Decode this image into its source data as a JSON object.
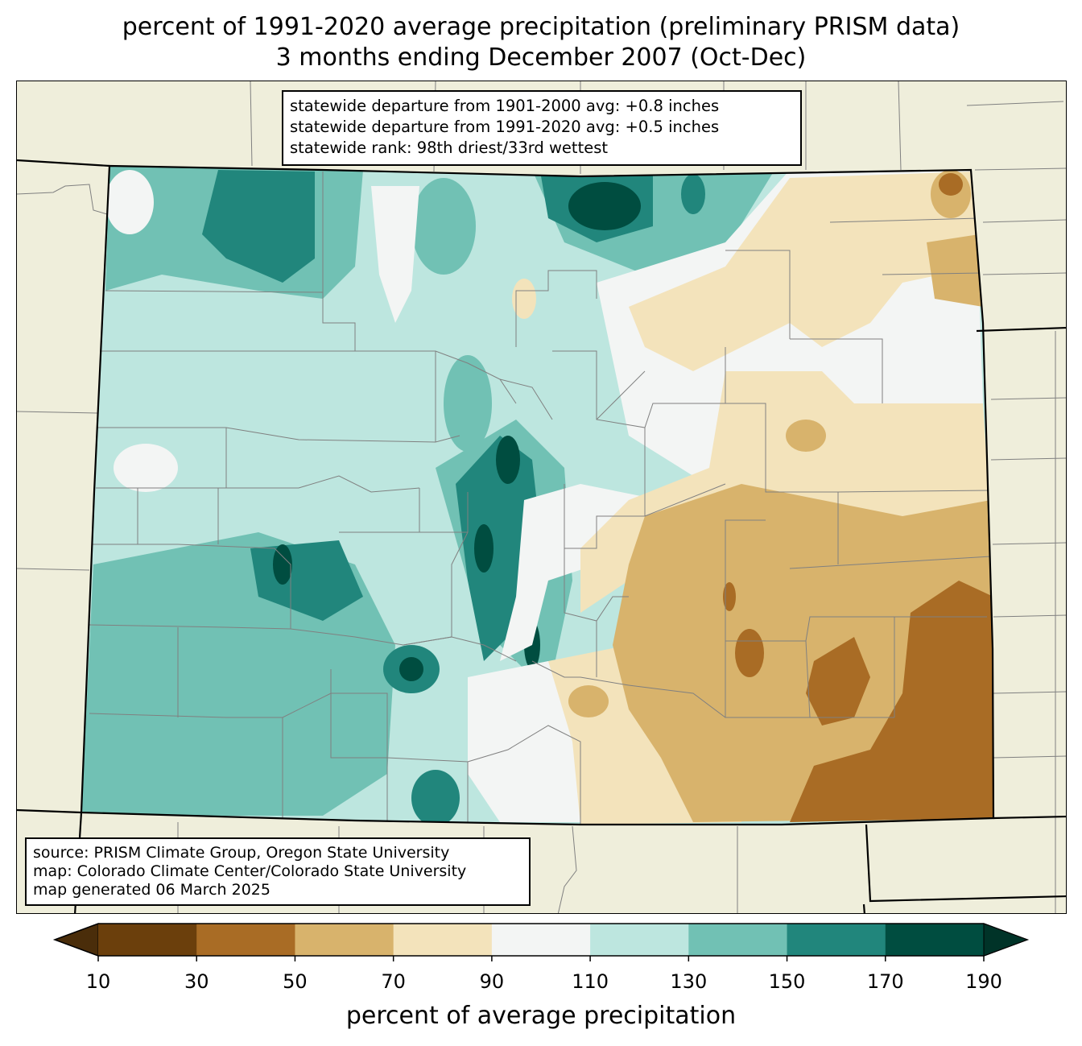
{
  "title": {
    "line1": "percent of 1991-2020 average precipitation (preliminary PRISM data)",
    "line2": "3 months ending December 2007 (Oct-Dec)"
  },
  "stats": {
    "line1": "statewide departure from 1901-2000 avg: +0.8 inches",
    "line2": "statewide departure from 1991-2020 avg: +0.5 inches",
    "line3": "statewide rank: 98th driest/33rd wettest"
  },
  "source": {
    "line1": "source: PRISM Climate Group, Oregon State University",
    "line2": "map: Colorado Climate Center/Colorado State University",
    "line3": "map generated 06 March 2025"
  },
  "legend": {
    "label": "percent of average precipitation",
    "ticks": [
      "10",
      "30",
      "50",
      "70",
      "90",
      "110",
      "130",
      "150",
      "170",
      "190"
    ],
    "bins": [
      {
        "range": "10-30",
        "color": "#6b3f0c"
      },
      {
        "range": "30-50",
        "color": "#a96c25"
      },
      {
        "range": "50-70",
        "color": "#d8b36c"
      },
      {
        "range": "70-90",
        "color": "#f3e3bb"
      },
      {
        "range": "90-110",
        "color": "#f3f5f4"
      },
      {
        "range": "110-130",
        "color": "#bde6df"
      },
      {
        "range": "130-150",
        "color": "#71c1b4"
      },
      {
        "range": "150-170",
        "color": "#21867c"
      },
      {
        "range": "170-190",
        "color": "#004d40"
      }
    ],
    "under_color": "#4a2d0a",
    "over_color": "#003328"
  },
  "colors": {
    "background": "#efeedb",
    "county_lines": "#808080",
    "state_lines": "#000000"
  }
}
